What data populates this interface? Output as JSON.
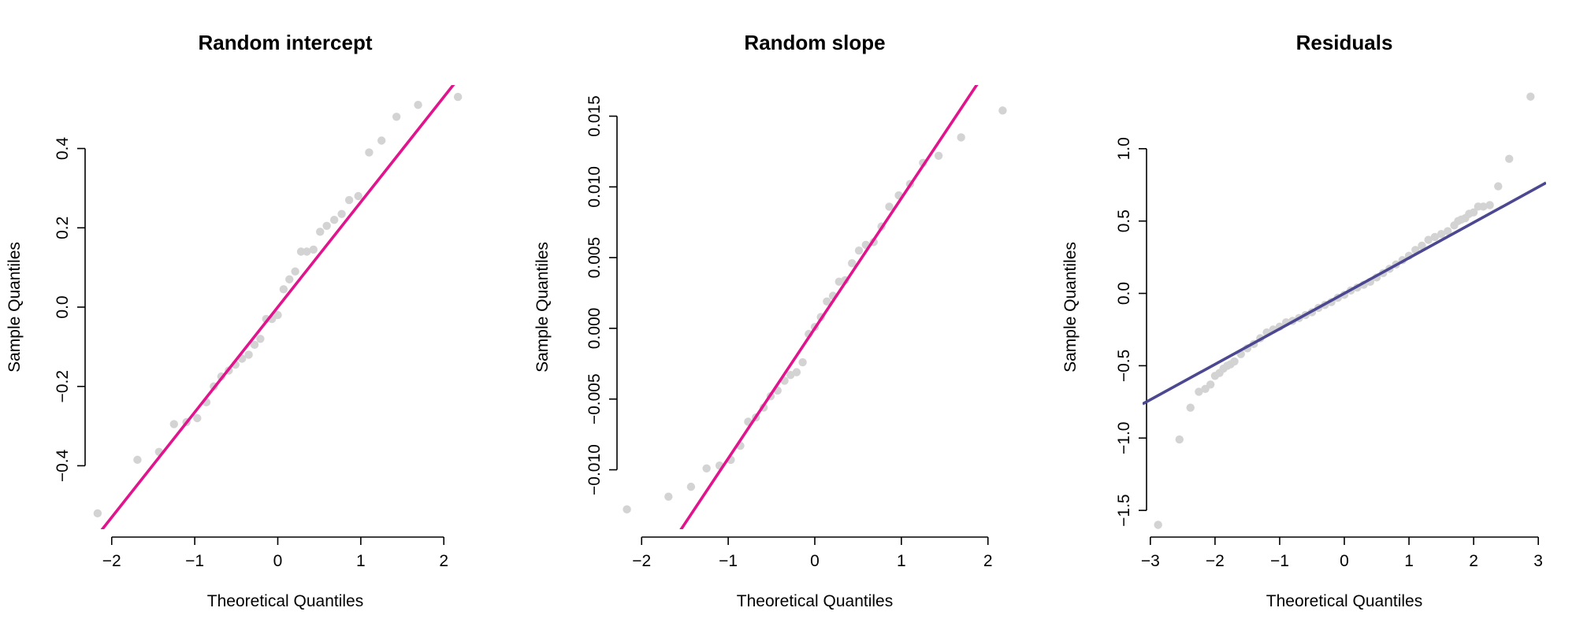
{
  "chart_data": [
    {
      "type": "scatter",
      "title": "Random intercept",
      "xlabel": "Theoretical Quantiles",
      "ylabel": "Sample Quantiles",
      "xlim": [
        -2.33,
        2.33
      ],
      "ylim": [
        -0.56,
        0.56
      ],
      "x_ticks": [
        -2,
        -1,
        0,
        1,
        2
      ],
      "x_tick_labels": [
        "−2",
        "−1",
        "0",
        "1",
        "2"
      ],
      "y_ticks": [
        -0.4,
        -0.2,
        0.0,
        0.2,
        0.4
      ],
      "y_tick_labels": [
        "−0.4",
        "−0.2",
        "0.0",
        "0.2",
        "0.4"
      ],
      "point_color": "#d3d3d3",
      "line_color": "#e0148c",
      "reference_line": {
        "intercept": 0.0,
        "slope": 0.265
      },
      "x": [
        -2.17,
        -1.69,
        -1.43,
        -1.25,
        -1.1,
        -0.97,
        -0.86,
        -0.77,
        -0.68,
        -0.59,
        -0.51,
        -0.43,
        -0.35,
        -0.28,
        -0.21,
        -0.14,
        -0.07,
        0.0,
        0.07,
        0.14,
        0.21,
        0.28,
        0.35,
        0.43,
        0.51,
        0.59,
        0.68,
        0.77,
        0.86,
        0.97,
        1.1,
        1.25,
        1.43,
        1.69,
        2.17
      ],
      "y": [
        -0.52,
        -0.385,
        -0.365,
        -0.295,
        -0.29,
        -0.28,
        -0.24,
        -0.2,
        -0.175,
        -0.16,
        -0.145,
        -0.13,
        -0.12,
        -0.095,
        -0.08,
        -0.03,
        -0.03,
        -0.02,
        0.045,
        0.07,
        0.09,
        0.14,
        0.14,
        0.145,
        0.19,
        0.205,
        0.22,
        0.235,
        0.27,
        0.28,
        0.39,
        0.42,
        0.48,
        0.51,
        0.53
      ]
    },
    {
      "type": "scatter",
      "title": "Random slope",
      "xlabel": "Theoretical Quantiles",
      "ylabel": "Sample Quantiles",
      "xlim": [
        -2.33,
        2.33
      ],
      "ylim": [
        -0.0142,
        0.0172
      ],
      "x_ticks": [
        -2,
        -1,
        0,
        1,
        2
      ],
      "x_tick_labels": [
        "−2",
        "−1",
        "0",
        "1",
        "2"
      ],
      "y_ticks": [
        -0.01,
        -0.005,
        0.0,
        0.005,
        0.01,
        0.015
      ],
      "y_tick_labels": [
        "−0.010",
        "−0.005",
        "0.000",
        "0.005",
        "0.010",
        "0.015"
      ],
      "point_color": "#d3d3d3",
      "line_color": "#e0148c",
      "reference_line": {
        "intercept": 0.0,
        "slope": 0.0092
      },
      "x": [
        -2.17,
        -1.69,
        -1.43,
        -1.25,
        -1.1,
        -0.97,
        -0.86,
        -0.77,
        -0.68,
        -0.59,
        -0.51,
        -0.43,
        -0.35,
        -0.28,
        -0.21,
        -0.14,
        -0.07,
        0.0,
        0.07,
        0.14,
        0.21,
        0.28,
        0.35,
        0.43,
        0.51,
        0.59,
        0.68,
        0.77,
        0.86,
        0.97,
        1.1,
        1.25,
        1.43,
        1.69,
        2.17
      ],
      "y": [
        -0.0128,
        -0.0119,
        -0.0112,
        -0.0099,
        -0.0097,
        -0.0093,
        -0.0083,
        -0.0066,
        -0.0063,
        -0.0056,
        -0.0048,
        -0.0044,
        -0.0037,
        -0.0033,
        -0.0031,
        -0.0024,
        -0.0004,
        0.0001,
        0.0008,
        0.0019,
        0.0023,
        0.0033,
        0.0034,
        0.0046,
        0.0055,
        0.0059,
        0.0061,
        0.0072,
        0.0086,
        0.0094,
        0.0102,
        0.0117,
        0.0122,
        0.0135,
        0.0154
      ]
    },
    {
      "type": "scatter",
      "title": "Residuals",
      "xlabel": "Theoretical Quantiles",
      "ylabel": "Sample Quantiles",
      "xlim": [
        -3.12,
        3.12
      ],
      "ylim": [
        -1.63,
        1.44
      ],
      "x_ticks": [
        -3,
        -2,
        -1,
        0,
        1,
        2,
        3
      ],
      "x_tick_labels": [
        "−3",
        "−2",
        "−1",
        "0",
        "1",
        "2",
        "3"
      ],
      "y_ticks": [
        -1.5,
        -1.0,
        -0.5,
        0.0,
        0.5,
        1.0
      ],
      "y_tick_labels": [
        "−1.5",
        "−1.0",
        "−0.5",
        "0.0",
        "0.5",
        "1.0"
      ],
      "point_color": "#d3d3d3",
      "line_color": "#4b4791",
      "reference_line": {
        "intercept": 0.0,
        "slope": 0.245
      },
      "x": [
        -2.88,
        -2.55,
        -2.38,
        -2.25,
        -2.15,
        -2.07,
        -2.0,
        -1.93,
        -1.87,
        -1.81,
        -1.76,
        -1.7,
        -1.6,
        -1.5,
        -1.4,
        -1.3,
        -1.2,
        -1.1,
        -1.0,
        -0.9,
        -0.8,
        -0.7,
        -0.6,
        -0.5,
        -0.4,
        -0.3,
        -0.2,
        -0.1,
        0.0,
        0.1,
        0.2,
        0.3,
        0.4,
        0.5,
        0.6,
        0.7,
        0.8,
        0.9,
        1.0,
        1.1,
        1.2,
        1.3,
        1.4,
        1.5,
        1.6,
        1.7,
        1.76,
        1.81,
        1.87,
        1.93,
        2.0,
        2.07,
        2.15,
        2.25,
        2.38,
        2.55,
        2.88
      ],
      "y": [
        -1.6,
        -1.01,
        -0.79,
        -0.68,
        -0.66,
        -0.63,
        -0.57,
        -0.55,
        -0.52,
        -0.5,
        -0.49,
        -0.47,
        -0.42,
        -0.38,
        -0.35,
        -0.31,
        -0.27,
        -0.25,
        -0.23,
        -0.2,
        -0.19,
        -0.17,
        -0.15,
        -0.13,
        -0.1,
        -0.08,
        -0.06,
        -0.03,
        -0.01,
        0.02,
        0.04,
        0.06,
        0.08,
        0.11,
        0.14,
        0.17,
        0.2,
        0.23,
        0.26,
        0.3,
        0.33,
        0.37,
        0.39,
        0.41,
        0.43,
        0.47,
        0.5,
        0.51,
        0.52,
        0.55,
        0.56,
        0.6,
        0.6,
        0.61,
        0.74,
        0.93,
        1.36
      ]
    }
  ]
}
